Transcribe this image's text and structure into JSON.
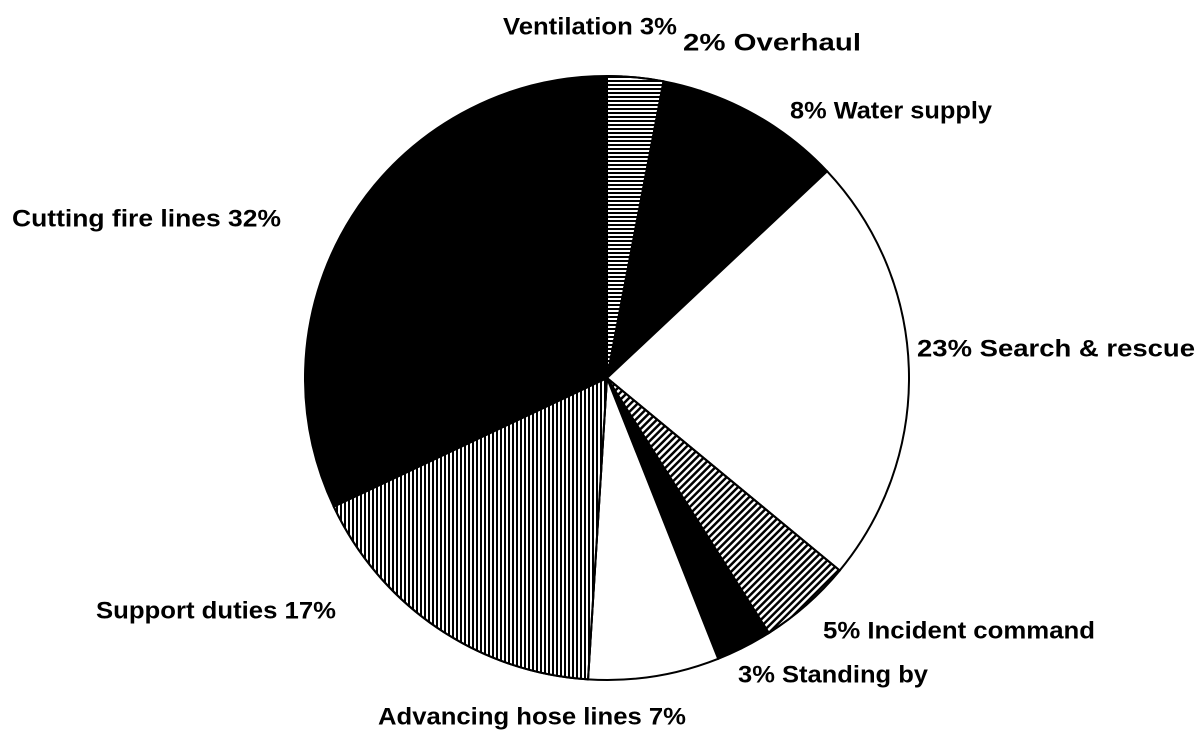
{
  "chart_data": {
    "type": "pie",
    "categories": [
      "Ventilation 3%",
      "2% Overhaul",
      "8% Water supply",
      "23% Search & rescue",
      "5% Incident command",
      "3% Standing by",
      "Advancing hose lines 7%",
      "Support duties 17%",
      "Cutting fire lines 32%"
    ],
    "values": [
      3,
      2,
      8,
      23,
      5,
      3,
      7,
      17,
      32
    ],
    "colors": [
      "#ffffff",
      "#000000",
      "#000000",
      "#ffffff",
      "#ffffff",
      "#000000",
      "#ffffff",
      "#ffffff",
      "#000000"
    ],
    "patterns": [
      "horizontal-stripes",
      "none",
      "none",
      "none",
      "diagonal-stripes",
      "none",
      "none",
      "vertical-stripes",
      "none"
    ]
  }
}
